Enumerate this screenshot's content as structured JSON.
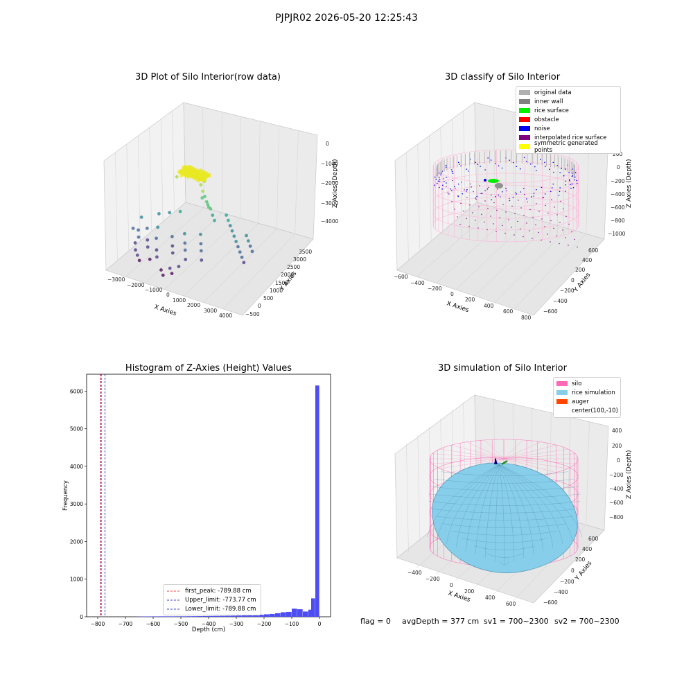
{
  "figure": {
    "suptitle": "PJPJR02 2026-05-20 12:25:43",
    "footer": {
      "flag": "flag = 0",
      "avg": "avgDepth = 377 cm",
      "sv1": "sv1 = 700~2300",
      "sv2": "sv2 = 700~2300"
    }
  },
  "chart_data": [
    {
      "type": "scatter",
      "projection": "3d",
      "title": "3D Plot of Silo Interior(row data)",
      "xlabel": "X Axies",
      "ylabel": "Y Axies",
      "zlabel": "Z Axies (Depth)",
      "xticks": [
        "−3000",
        "−2000",
        "−1000",
        "0",
        "1000",
        "2000",
        "3000",
        "4000"
      ],
      "yticks": [
        "−500",
        "0",
        "500",
        "1000",
        "1500",
        "2000",
        "2500",
        "3000",
        "3500"
      ],
      "zticks": [
        "0",
        "−1000",
        "−2000",
        "−3000",
        "−4000"
      ],
      "colormap": "viridis",
      "grid": true,
      "points": [
        [
          -1500,
          2000,
          -1800
        ],
        [
          -1300,
          2100,
          -1750
        ],
        [
          -1100,
          2200,
          -1800
        ],
        [
          -900,
          2300,
          -1850
        ],
        [
          -700,
          2250,
          -1900
        ],
        [
          -500,
          2200,
          -1900
        ],
        [
          -300,
          2100,
          -1950
        ],
        [
          -1400,
          1900,
          -1850
        ],
        [
          -1200,
          2000,
          -1820
        ],
        [
          -1000,
          2050,
          -1860
        ],
        [
          -800,
          2150,
          -1880
        ],
        [
          -600,
          2100,
          -1920
        ],
        [
          -1600,
          1850,
          -1900
        ],
        [
          -1450,
          2150,
          -1700
        ],
        [
          -1250,
          2250,
          -1760
        ],
        [
          -400,
          2000,
          -2050
        ],
        [
          -200,
          1900,
          -2200
        ],
        [
          0,
          1800,
          -2300
        ],
        [
          200,
          1700,
          -2400
        ],
        [
          400,
          1600,
          -2500
        ],
        [
          600,
          1500,
          -2450
        ],
        [
          800,
          1400,
          -2600
        ],
        [
          1000,
          1300,
          -2700
        ],
        [
          -100,
          1750,
          -2350
        ],
        [
          300,
          1650,
          -2450
        ],
        [
          1200,
          1800,
          -2800
        ],
        [
          1400,
          1700,
          -2900
        ],
        [
          1600,
          1600,
          -3000
        ],
        [
          1800,
          1500,
          -3100
        ],
        [
          2000,
          1400,
          -3200
        ],
        [
          2200,
          1300,
          -3300
        ],
        [
          2400,
          1200,
          -3400
        ],
        [
          2600,
          1100,
          -3500
        ],
        [
          2800,
          1000,
          -3600
        ],
        [
          3000,
          900,
          -3700
        ],
        [
          2500,
          1600,
          -3200
        ],
        [
          2700,
          1500,
          -3300
        ],
        [
          2900,
          1400,
          -3400
        ],
        [
          3100,
          1300,
          -3500
        ],
        [
          -2800,
          500,
          -3400
        ],
        [
          -2600,
          600,
          -3500
        ],
        [
          -2400,
          400,
          -3600
        ],
        [
          -2200,
          700,
          -3400
        ],
        [
          -2000,
          500,
          -3700
        ],
        [
          -1800,
          300,
          -3800
        ],
        [
          -1600,
          600,
          -3600
        ],
        [
          -1400,
          400,
          -3900
        ],
        [
          -1200,
          200,
          -4000
        ],
        [
          -2500,
          300,
          -3800
        ],
        [
          -2300,
          100,
          -3900
        ],
        [
          -2100,
          0,
          -4000
        ],
        [
          -1900,
          -100,
          -4100
        ],
        [
          -1500,
          100,
          -4100
        ],
        [
          -1700,
          800,
          -3300
        ],
        [
          -900,
          800,
          -3500
        ],
        [
          -700,
          600,
          -3700
        ],
        [
          -500,
          400,
          -3800
        ],
        [
          -300,
          900,
          -3300
        ],
        [
          -100,
          700,
          -3500
        ],
        [
          100,
          500,
          -3600
        ],
        [
          300,
          300,
          -3800
        ],
        [
          500,
          1000,
          -3200
        ],
        [
          700,
          800,
          -3400
        ],
        [
          900,
          600,
          -3500
        ],
        [
          1100,
          400,
          -3700
        ],
        [
          -600,
          -200,
          -4100
        ],
        [
          -400,
          -300,
          -4200
        ],
        [
          -200,
          -100,
          -4000
        ],
        [
          0,
          -200,
          -4100
        ],
        [
          200,
          0,
          -3900
        ],
        [
          -2700,
          900,
          -3200
        ],
        [
          -2000,
          1200,
          -3100
        ],
        [
          -1500,
          1300,
          -3000
        ],
        [
          -1000,
          1400,
          -2900
        ]
      ]
    },
    {
      "type": "scatter",
      "projection": "3d",
      "title": "3D classify of Silo Interior",
      "xlabel": "X Axies",
      "ylabel": "Y Axies",
      "zlabel": "Z Axies (Depth)",
      "xticks": [
        "−600",
        "−400",
        "−200",
        "0",
        "200",
        "400",
        "600",
        "800"
      ],
      "yticks": [
        "−600",
        "−400",
        "−200",
        "0",
        "200",
        "400",
        "600"
      ],
      "zticks": [
        "200",
        "0",
        "−200",
        "−400",
        "−600",
        "−800",
        "−1000"
      ],
      "legend": {
        "position": "top-right",
        "entries": [
          {
            "label": "original data",
            "color": "#b0b0b0"
          },
          {
            "label": "inner wall",
            "color": "#808080"
          },
          {
            "label": "rice surface",
            "color": "#00ee00"
          },
          {
            "label": "obstacle",
            "color": "#ff0000"
          },
          {
            "label": "noise",
            "color": "#0000ee"
          },
          {
            "label": "interpolated rice surface",
            "color": "#800080"
          },
          {
            "label": "symmetric generated points",
            "color": "#ffff00"
          }
        ]
      },
      "silo": {
        "center": [
          100,
          -10
        ],
        "radius": 640,
        "top": 0,
        "bottom": -1000
      }
    },
    {
      "type": "histogram",
      "title": "Histogram of Z-Axies (Height) Values",
      "xlabel": "Depth (cm)",
      "ylabel": "Frequency",
      "xlim": [
        -840,
        40
      ],
      "ylim": [
        0,
        6450
      ],
      "xticks": [
        -800,
        -700,
        -600,
        -500,
        -400,
        -300,
        -200,
        -100,
        0
      ],
      "yticks": [
        0,
        1000,
        2000,
        3000,
        4000,
        5000,
        6000
      ],
      "bar_color": "#4d4df2",
      "bins": [
        {
          "start": -660,
          "width": 20,
          "count": 5
        },
        {
          "start": -640,
          "width": 20,
          "count": 8
        },
        {
          "start": -620,
          "width": 20,
          "count": 10
        },
        {
          "start": -600,
          "width": 20,
          "count": 11
        },
        {
          "start": -580,
          "width": 20,
          "count": 12
        },
        {
          "start": -560,
          "width": 20,
          "count": 12
        },
        {
          "start": -540,
          "width": 20,
          "count": 12
        },
        {
          "start": -520,
          "width": 20,
          "count": 13
        },
        {
          "start": -500,
          "width": 20,
          "count": 13
        },
        {
          "start": -480,
          "width": 20,
          "count": 15
        },
        {
          "start": -460,
          "width": 20,
          "count": 16
        },
        {
          "start": -440,
          "width": 20,
          "count": 18
        },
        {
          "start": -420,
          "width": 20,
          "count": 20
        },
        {
          "start": -400,
          "width": 20,
          "count": 22
        },
        {
          "start": -380,
          "width": 20,
          "count": 24
        },
        {
          "start": -360,
          "width": 20,
          "count": 26
        },
        {
          "start": -340,
          "width": 20,
          "count": 28
        },
        {
          "start": -320,
          "width": 20,
          "count": 30
        },
        {
          "start": -300,
          "width": 20,
          "count": 33
        },
        {
          "start": -280,
          "width": 20,
          "count": 36
        },
        {
          "start": -260,
          "width": 20,
          "count": 40
        },
        {
          "start": -240,
          "width": 20,
          "count": 45
        },
        {
          "start": -220,
          "width": 20,
          "count": 55
        },
        {
          "start": -200,
          "width": 20,
          "count": 65
        },
        {
          "start": -180,
          "width": 20,
          "count": 75
        },
        {
          "start": -160,
          "width": 20,
          "count": 95
        },
        {
          "start": -140,
          "width": 20,
          "count": 120
        },
        {
          "start": -120,
          "width": 20,
          "count": 130
        },
        {
          "start": -100,
          "width": 20,
          "count": 215
        },
        {
          "start": -80,
          "width": 20,
          "count": 200
        },
        {
          "start": -60,
          "width": 20,
          "count": 140
        },
        {
          "start": -40,
          "width": 20,
          "count": 190
        },
        {
          "start": -30,
          "width": 15,
          "count": 490
        },
        {
          "start": -15,
          "width": 15,
          "count": 6150
        }
      ],
      "vlines": [
        {
          "label": "first_peak: -789.88 cm",
          "x": -789.88,
          "color": "#ff0000"
        },
        {
          "label": "Upper_limit: -773.77 cm",
          "x": -773.77,
          "color": "#0000cc"
        },
        {
          "label": "Lower_limit: -789.88 cm",
          "x": -789.88,
          "color": "#0000cc"
        }
      ],
      "legend": {
        "position": "bottom-center"
      }
    },
    {
      "type": "surface",
      "projection": "3d",
      "title": "3D simulation of Silo Interior",
      "xlabel": "X Axies",
      "ylabel": "Y Axies",
      "zlabel": "Z Axies (Depth)",
      "xticks": [
        "−400",
        "−200",
        "0",
        "200",
        "400",
        "600"
      ],
      "yticks": [
        "−600",
        "−400",
        "−200",
        "0",
        "200",
        "400",
        "600"
      ],
      "zticks": [
        "400",
        "200",
        "0",
        "−200",
        "−400",
        "−600",
        "−800"
      ],
      "legend": {
        "position": "top-right",
        "entries": [
          {
            "label": "silo",
            "color": "#ff69b4"
          },
          {
            "label": "rice simulation",
            "color": "#87ceeb"
          },
          {
            "label": "auger",
            "color": "#ff4500"
          },
          {
            "label": "center(100,-10)",
            "color": ""
          }
        ]
      }
    }
  ]
}
